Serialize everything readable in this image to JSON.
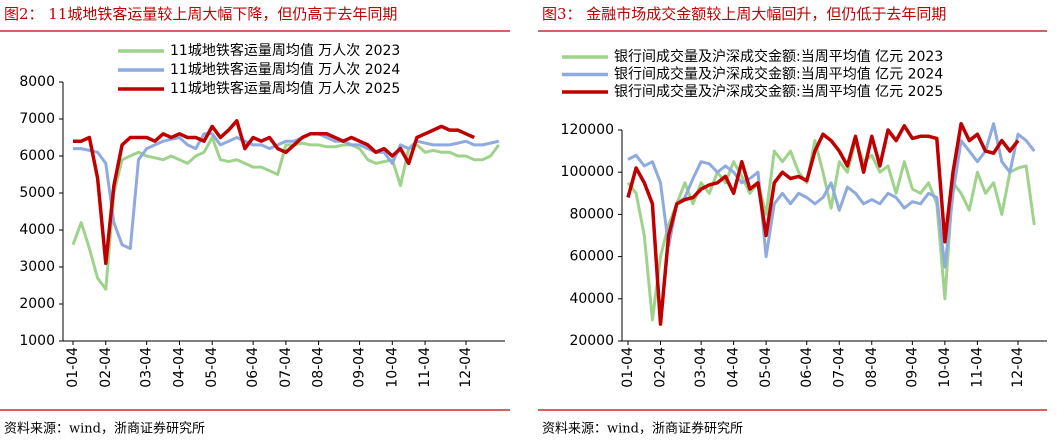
{
  "chart_data": [
    {
      "type": "line",
      "title": "图2：  11城地铁客运量较上周大幅下降，但仍高于去年同期",
      "source": "资料来源：wind，浙商证券研究所",
      "categories": [
        "01-04",
        null,
        null,
        null,
        "02-04",
        null,
        null,
        null,
        null,
        "03-04",
        null,
        null,
        null,
        "04-04",
        null,
        null,
        null,
        "05-04",
        null,
        null,
        null,
        null,
        "06-04",
        null,
        null,
        null,
        "07-04",
        null,
        null,
        null,
        "08-04",
        null,
        null,
        null,
        null,
        "09-04",
        null,
        null,
        null,
        "10-04",
        null,
        null,
        null,
        "11-04",
        null,
        null,
        null,
        null,
        "12-04",
        null,
        null,
        null,
        null
      ],
      "ylim": [
        1000,
        8000
      ],
      "yticks": [
        1000,
        2000,
        3000,
        4000,
        5000,
        6000,
        7000,
        8000
      ],
      "series": [
        {
          "name": "11城地铁客运量周均值  万人次  2023",
          "color": "#9fd38c",
          "values": [
            3600,
            4200,
            3500,
            2700,
            2400,
            5000,
            5900,
            6000,
            6100,
            6000,
            5950,
            5900,
            6000,
            5900,
            5800,
            6000,
            6100,
            6500,
            5900,
            5850,
            5900,
            5800,
            5700,
            5700,
            5600,
            5500,
            6300,
            6300,
            6350,
            6300,
            6300,
            6250,
            6250,
            6300,
            6300,
            6200,
            5900,
            5800,
            5850,
            5900,
            5200,
            6200,
            6300,
            6100,
            6150,
            6100,
            6100,
            6000,
            6000,
            5900,
            5900,
            6000,
            6300
          ]
        },
        {
          "name": "11城地铁客运量周均值  万人次  2024",
          "color": "#8eaadf",
          "values": [
            6200,
            6200,
            6150,
            6100,
            5800,
            4200,
            3600,
            3500,
            5900,
            6200,
            6300,
            6400,
            6450,
            6500,
            6300,
            6200,
            6600,
            6600,
            6300,
            6400,
            6500,
            6400,
            6300,
            6300,
            6200,
            6300,
            6400,
            6400,
            6500,
            6600,
            6600,
            6500,
            6400,
            6400,
            6300,
            6300,
            6200,
            6100,
            6100,
            5800,
            6300,
            6200,
            6400,
            6350,
            6300,
            6300,
            6300,
            6350,
            6400,
            6300,
            6300,
            6350,
            6400
          ]
        },
        {
          "name": "11城地铁客运量周均值  万人次  2025",
          "color": "#c00000",
          "values": [
            6400,
            6400,
            6500,
            5400,
            3100,
            5200,
            6300,
            6500,
            6500,
            6500,
            6400,
            6600,
            6500,
            6600,
            6500,
            6500,
            6400,
            6800,
            6500,
            6700,
            6950,
            6200,
            6500,
            6400,
            6500,
            6200,
            6100,
            6300,
            6500,
            6600,
            6600,
            6600,
            6500,
            6400,
            6500,
            6400,
            6300,
            6100,
            6200,
            6000,
            6200,
            5800,
            6500,
            6600,
            6700,
            6800,
            6700,
            6700,
            6600,
            6500,
            null,
            null,
            null
          ]
        }
      ]
    },
    {
      "type": "line",
      "title": "图3：  金融市场成交金额较上周大幅回升，但仍低于去年同期",
      "source": "资料来源：wind，浙商证券研究所",
      "categories": [
        "01-04",
        null,
        null,
        null,
        "02-04",
        null,
        null,
        null,
        null,
        "03-04",
        null,
        null,
        null,
        "04-04",
        null,
        null,
        null,
        "05-04",
        null,
        null,
        null,
        null,
        "06-04",
        null,
        null,
        null,
        "07-04",
        null,
        null,
        null,
        "08-04",
        null,
        null,
        null,
        null,
        "09-04",
        null,
        null,
        null,
        "10-04",
        null,
        null,
        null,
        "11-04",
        null,
        null,
        null,
        null,
        "12-04",
        null,
        null
      ],
      "ylim": [
        20000,
        120000
      ],
      "yticks": [
        20000,
        40000,
        60000,
        80000,
        100000,
        120000
      ],
      "series": [
        {
          "name": "银行间成交量及沪深成交金额:当周平均值  亿元  2023",
          "color": "#9fd38c",
          "values": [
            95000,
            90000,
            70000,
            30000,
            60000,
            75000,
            85000,
            95000,
            85000,
            95000,
            90000,
            100000,
            95000,
            105000,
            98000,
            90000,
            95000,
            80000,
            110000,
            105000,
            110000,
            100000,
            95000,
            115000,
            100000,
            83000,
            105000,
            100000,
            115000,
            105000,
            108000,
            100000,
            103000,
            90000,
            105000,
            92000,
            90000,
            95000,
            85000,
            40000,
            95000,
            90000,
            82000,
            100000,
            90000,
            95000,
            80000,
            100000,
            102000,
            103000,
            75000
          ]
        },
        {
          "name": "银行间成交量及沪深成交金额:当周平均值  亿元  2024",
          "color": "#8eaadf",
          "values": [
            106000,
            108000,
            103000,
            105000,
            95000,
            65000,
            85000,
            88000,
            97000,
            105000,
            104000,
            100000,
            103000,
            100000,
            95000,
            97000,
            100000,
            60000,
            85000,
            90000,
            85000,
            90000,
            88000,
            85000,
            88000,
            95000,
            82000,
            93000,
            90000,
            85000,
            87000,
            85000,
            90000,
            88000,
            83000,
            86000,
            85000,
            90000,
            88000,
            55000,
            90000,
            115000,
            110000,
            105000,
            110000,
            123000,
            105000,
            100000,
            118000,
            115000,
            110000
          ]
        },
        {
          "name": "银行间成交量及沪深成交金额:当周平均值  亿元  2025",
          "color": "#c00000",
          "values": [
            88000,
            102000,
            95000,
            85000,
            28000,
            70000,
            85000,
            87000,
            88000,
            92000,
            94000,
            95000,
            98000,
            90000,
            105000,
            92000,
            95000,
            70000,
            95000,
            100000,
            97000,
            98000,
            96000,
            110000,
            118000,
            115000,
            110000,
            103000,
            117000,
            100000,
            117000,
            103000,
            120000,
            115000,
            122000,
            116000,
            117000,
            117000,
            116000,
            67000,
            100000,
            123000,
            115000,
            118000,
            110000,
            109000,
            115000,
            110000,
            115000,
            null,
            null
          ]
        }
      ]
    }
  ]
}
